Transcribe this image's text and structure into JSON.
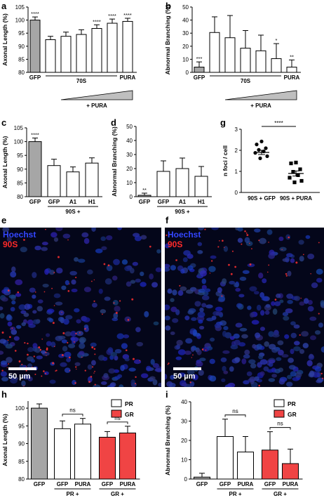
{
  "colors": {
    "gray_bar": "#a6a6a6",
    "red_bar": "#f04444",
    "open_bar": "#ffffff",
    "hoechst": "#3346ff",
    "stain_90s": "#ff2a2a"
  },
  "panels": {
    "a": "a",
    "b": "b",
    "c": "c",
    "d": "d",
    "e": "e",
    "f": "f",
    "g": "g",
    "h": "h",
    "i": "i"
  },
  "chart_data": [
    {
      "id": "a",
      "type": "bar",
      "ylabel": "Axonal Length (%)",
      "ylim": [
        80,
        105
      ],
      "yticks": [
        80,
        85,
        90,
        95,
        100,
        105
      ],
      "bars": [
        {
          "value": 100,
          "err": 1.2,
          "fill": "gray",
          "sig": "****"
        },
        {
          "value": 92.5,
          "err": 1.3,
          "fill": "open",
          "sig": ""
        },
        {
          "value": 93.8,
          "err": 1.6,
          "fill": "open",
          "sig": ""
        },
        {
          "value": 94.5,
          "err": 1.8,
          "fill": "open",
          "sig": ""
        },
        {
          "value": 96.8,
          "err": 1.4,
          "fill": "open",
          "sig": "****"
        },
        {
          "value": 98.8,
          "err": 1.6,
          "fill": "open",
          "sig": "****"
        },
        {
          "value": 99.5,
          "err": 1.2,
          "fill": "open",
          "sig": "****"
        }
      ],
      "xlabels": [
        {
          "bar": 0,
          "text": "GFP"
        },
        {
          "bar": 6,
          "text": "PURA"
        }
      ],
      "group": {
        "from": 1,
        "to": 5,
        "label": "70S"
      },
      "wedge": {
        "from": 2,
        "to": 6,
        "label": "+ PURA"
      }
    },
    {
      "id": "b",
      "type": "bar",
      "ylabel": "Abnormal Branching (%)",
      "ylim": [
        0,
        50
      ],
      "yticks": [
        0,
        10,
        20,
        30,
        40,
        50
      ],
      "bars": [
        {
          "value": 4,
          "err": 4,
          "fill": "gray",
          "sig": "***"
        },
        {
          "value": 30.5,
          "err": 12,
          "fill": "open",
          "sig": ""
        },
        {
          "value": 26.5,
          "err": 17,
          "fill": "open",
          "sig": ""
        },
        {
          "value": 18.5,
          "err": 13.5,
          "fill": "open",
          "sig": ""
        },
        {
          "value": 16.5,
          "err": 12,
          "fill": "open",
          "sig": ""
        },
        {
          "value": 10.5,
          "err": 11.5,
          "fill": "open",
          "sig": "*"
        },
        {
          "value": 4,
          "err": 5.5,
          "fill": "open",
          "sig": "**"
        }
      ],
      "xlabels": [
        {
          "bar": 0,
          "text": "GFP"
        },
        {
          "bar": 6,
          "text": "PURA"
        }
      ],
      "group": {
        "from": 1,
        "to": 5,
        "label": "70S"
      },
      "wedge": {
        "from": 2,
        "to": 6,
        "label": "+ PURA"
      }
    },
    {
      "id": "c",
      "type": "bar",
      "ylabel": "Axonal Length (%)",
      "ylim": [
        80,
        105
      ],
      "yticks": [
        80,
        85,
        90,
        95,
        100,
        105
      ],
      "bars": [
        {
          "value": 100,
          "err": 1.3,
          "fill": "gray",
          "sig": "****"
        },
        {
          "value": 91.3,
          "err": 2.3,
          "fill": "open",
          "sig": ""
        },
        {
          "value": 89,
          "err": 1.8,
          "fill": "open",
          "sig": ""
        },
        {
          "value": 92.2,
          "err": 1.9,
          "fill": "open",
          "sig": ""
        }
      ],
      "xlabels": [
        {
          "bar": 0,
          "text": "GFP"
        },
        {
          "bar": 1,
          "text": "GFP"
        },
        {
          "bar": 2,
          "text": "A1"
        },
        {
          "bar": 3,
          "text": "H1"
        }
      ],
      "group": {
        "from": 1,
        "to": 3,
        "label": "90S +"
      }
    },
    {
      "id": "d",
      "type": "bar",
      "ylabel": "Abnormal Branching (%)",
      "ylim": [
        0,
        50
      ],
      "yticks": [
        0,
        10,
        20,
        30,
        40,
        50
      ],
      "bars": [
        {
          "value": 1,
          "err": 1.5,
          "fill": "gray",
          "sig": "**"
        },
        {
          "value": 18,
          "err": 7.5,
          "fill": "open",
          "sig": ""
        },
        {
          "value": 20,
          "err": 7.5,
          "fill": "open",
          "sig": ""
        },
        {
          "value": 14.5,
          "err": 7,
          "fill": "open",
          "sig": ""
        }
      ],
      "xlabels": [
        {
          "bar": 0,
          "text": "GFP"
        },
        {
          "bar": 1,
          "text": "GFP"
        },
        {
          "bar": 2,
          "text": "A1"
        },
        {
          "bar": 3,
          "text": "H1"
        }
      ],
      "group": {
        "from": 1,
        "to": 3,
        "label": "90S +"
      }
    },
    {
      "id": "g",
      "type": "scatter",
      "ylabel": "n foci / cell",
      "ylim": [
        0,
        3
      ],
      "yticks": [
        0,
        1,
        2,
        3
      ],
      "categories": [
        "90S + GFP",
        "90S + PURA"
      ],
      "series": [
        {
          "marker": "circle",
          "mean": 1.9,
          "sem": 0.1,
          "points": [
            2.42,
            2.28,
            2.1,
            2.02,
            1.95,
            1.88,
            1.72,
            1.62
          ]
        },
        {
          "marker": "square",
          "mean": 0.9,
          "sem": 0.12,
          "points": [
            1.42,
            1.38,
            1.1,
            0.98,
            0.82,
            0.7,
            0.55,
            0.48
          ]
        }
      ],
      "bracket": {
        "from": 0,
        "to": 1,
        "label": "****"
      }
    },
    {
      "id": "h",
      "type": "bar",
      "ylabel": "Axonal Length (%)",
      "ylim": [
        80,
        102
      ],
      "yticks": [
        80,
        85,
        90,
        95,
        100
      ],
      "bars": [
        {
          "value": 100,
          "err": 1.2,
          "fill": "gray",
          "sig": ""
        },
        {
          "value": 94.2,
          "err": 2.2,
          "fill": "open",
          "sig": ""
        },
        {
          "value": 95.5,
          "err": 1.6,
          "fill": "open",
          "sig": ""
        },
        {
          "value": 91.8,
          "err": 1.6,
          "fill": "red",
          "sig": ""
        },
        {
          "value": 93,
          "err": 1.9,
          "fill": "red",
          "sig": ""
        }
      ],
      "xlabels": [
        {
          "bar": 0,
          "text": "GFP"
        },
        {
          "bar": 1,
          "text": "GFP"
        },
        {
          "bar": 2,
          "text": "PURA"
        },
        {
          "bar": 3,
          "text": "GFP"
        },
        {
          "bar": 4,
          "text": "PURA"
        }
      ],
      "groups": [
        {
          "from": 1,
          "to": 2,
          "label": "PR +"
        },
        {
          "from": 3,
          "to": 4,
          "label": "GR +"
        }
      ],
      "brackets": [
        {
          "from": 1,
          "to": 2,
          "label": "ns"
        },
        {
          "from": 3,
          "to": 4,
          "label": "ns"
        }
      ],
      "legend": [
        {
          "fill": "open",
          "label": "PR"
        },
        {
          "fill": "red",
          "label": "GR"
        }
      ]
    },
    {
      "id": "i",
      "type": "bar",
      "ylabel": "Abnormal Branching (%)",
      "ylim": [
        0,
        40
      ],
      "yticks": [
        0,
        10,
        20,
        30,
        40
      ],
      "bars": [
        {
          "value": 1,
          "err": 2,
          "fill": "gray",
          "sig": ""
        },
        {
          "value": 22,
          "err": 9,
          "fill": "open",
          "sig": ""
        },
        {
          "value": 14,
          "err": 8,
          "fill": "open",
          "sig": ""
        },
        {
          "value": 15,
          "err": 9.5,
          "fill": "red",
          "sig": ""
        },
        {
          "value": 8,
          "err": 7.5,
          "fill": "red",
          "sig": ""
        }
      ],
      "xlabels": [
        {
          "bar": 0,
          "text": "GFP"
        },
        {
          "bar": 1,
          "text": "GFP"
        },
        {
          "bar": 2,
          "text": "PURA"
        },
        {
          "bar": 3,
          "text": "GFP"
        },
        {
          "bar": 4,
          "text": "PURA"
        }
      ],
      "groups": [
        {
          "from": 1,
          "to": 2,
          "label": "PR +"
        },
        {
          "from": 3,
          "to": 4,
          "label": "GR +"
        }
      ],
      "brackets": [
        {
          "from": 1,
          "to": 2,
          "label": "ns"
        },
        {
          "from": 3,
          "to": 4,
          "label": "ns"
        }
      ],
      "legend": [
        {
          "fill": "open",
          "label": "PR"
        },
        {
          "fill": "red",
          "label": "GR"
        }
      ]
    }
  ],
  "micrographs": [
    {
      "id": "e",
      "stain_1": "Hoechst",
      "stain_2": "90S",
      "scale_label": "50 µm"
    },
    {
      "id": "f",
      "stain_1": "Hoechst",
      "stain_2": "90S",
      "scale_label": "50 µm"
    }
  ]
}
